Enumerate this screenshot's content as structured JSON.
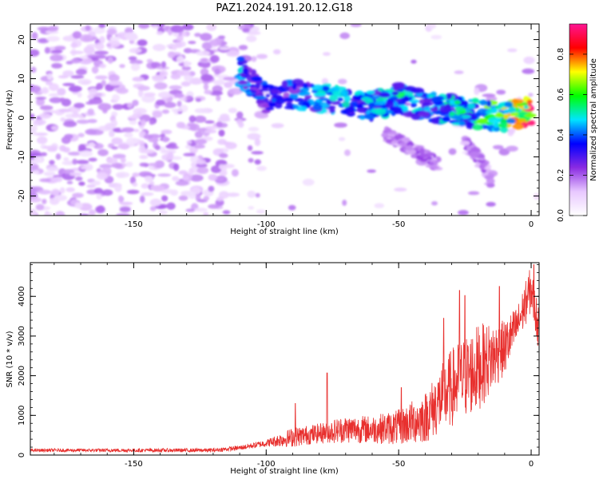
{
  "title": "PAZ1.2024.191.20.12.G18",
  "chart_data": [
    {
      "type": "heatmap",
      "title": "PAZ1.2024.191.20.12.G18",
      "xlabel": "Height of straight line (km)",
      "ylabel": "Frequency (Hz)",
      "xlim": [
        -189,
        3
      ],
      "ylim": [
        -25,
        24
      ],
      "xticks": [
        -150,
        -100,
        -50,
        0
      ],
      "yticks": [
        -20,
        -10,
        0,
        10,
        20
      ],
      "colorbar": {
        "label": "Normalized spectral amplitude",
        "range": [
          0,
          0.95
        ],
        "ticks": [
          0.0,
          0.2,
          0.4,
          0.6,
          0.8
        ],
        "colors": [
          "#ffffff",
          "#e8c8ff",
          "#8a2be2",
          "#0000ff",
          "#00e5ff",
          "#00ff00",
          "#ffff00",
          "#ff0000",
          "#ff1493"
        ]
      },
      "main_band": [
        {
          "x": -110,
          "y": 12,
          "amp": 0.45
        },
        {
          "x": -100,
          "y": 5,
          "amp": 0.35
        },
        {
          "x": -90,
          "y": 6,
          "amp": 0.4
        },
        {
          "x": -80,
          "y": 5,
          "amp": 0.45
        },
        {
          "x": -70,
          "y": 4,
          "amp": 0.45
        },
        {
          "x": -60,
          "y": 3,
          "amp": 0.45
        },
        {
          "x": -50,
          "y": 5,
          "amp": 0.5
        },
        {
          "x": -40,
          "y": 3,
          "amp": 0.45
        },
        {
          "x": -30,
          "y": 2,
          "amp": 0.5
        },
        {
          "x": -20,
          "y": 1,
          "amp": 0.55
        },
        {
          "x": -10,
          "y": 0,
          "amp": 0.65
        },
        {
          "x": 0,
          "y": 2,
          "amp": 0.85
        }
      ],
      "secondary_band": [
        {
          "x": -55,
          "y": -4,
          "amp": 0.2
        },
        {
          "x": -45,
          "y": -8,
          "amp": 0.2
        },
        {
          "x": -35,
          "y": -12,
          "amp": 0.2
        }
      ],
      "tertiary_band": [
        {
          "x": -25,
          "y": -6,
          "amp": 0.2
        },
        {
          "x": -18,
          "y": -12,
          "amp": 0.2
        },
        {
          "x": -15,
          "y": -17,
          "amp": 0.2
        }
      ]
    },
    {
      "type": "line",
      "xlabel": "Height of straight line (km)",
      "ylabel": "SNR (10 * v/v)",
      "xlim": [
        -189,
        3
      ],
      "ylim": [
        0,
        4850
      ],
      "xticks": [
        -150,
        -100,
        -50,
        0
      ],
      "yticks": [
        0,
        1000,
        2000,
        3000,
        4000
      ],
      "color": "#e8302e",
      "envelope": [
        {
          "x": -189,
          "mean": 120,
          "spread": 40
        },
        {
          "x": -120,
          "mean": 120,
          "spread": 50
        },
        {
          "x": -110,
          "mean": 180,
          "spread": 60
        },
        {
          "x": -100,
          "mean": 300,
          "spread": 90
        },
        {
          "x": -90,
          "mean": 450,
          "spread": 250
        },
        {
          "x": -80,
          "mean": 550,
          "spread": 250
        },
        {
          "x": -70,
          "mean": 650,
          "spread": 350
        },
        {
          "x": -60,
          "mean": 650,
          "spread": 350
        },
        {
          "x": -50,
          "mean": 700,
          "spread": 450
        },
        {
          "x": -40,
          "mean": 950,
          "spread": 650
        },
        {
          "x": -30,
          "mean": 1700,
          "spread": 1000
        },
        {
          "x": -20,
          "mean": 2200,
          "spread": 1100
        },
        {
          "x": -10,
          "mean": 2700,
          "spread": 700
        },
        {
          "x": -5,
          "mean": 3300,
          "spread": 500
        },
        {
          "x": 0,
          "mean": 4200,
          "spread": 600
        },
        {
          "x": 3,
          "mean": 3100,
          "spread": 500
        }
      ],
      "spikes": [
        {
          "x": -77,
          "y": 2070
        },
        {
          "x": -89,
          "y": 1300
        },
        {
          "x": -49,
          "y": 1700
        },
        {
          "x": -33,
          "y": 3450
        },
        {
          "x": -27,
          "y": 4150
        },
        {
          "x": -25,
          "y": 4020
        },
        {
          "x": -12,
          "y": 4250
        },
        {
          "x": 1,
          "y": 4800
        }
      ]
    }
  ]
}
